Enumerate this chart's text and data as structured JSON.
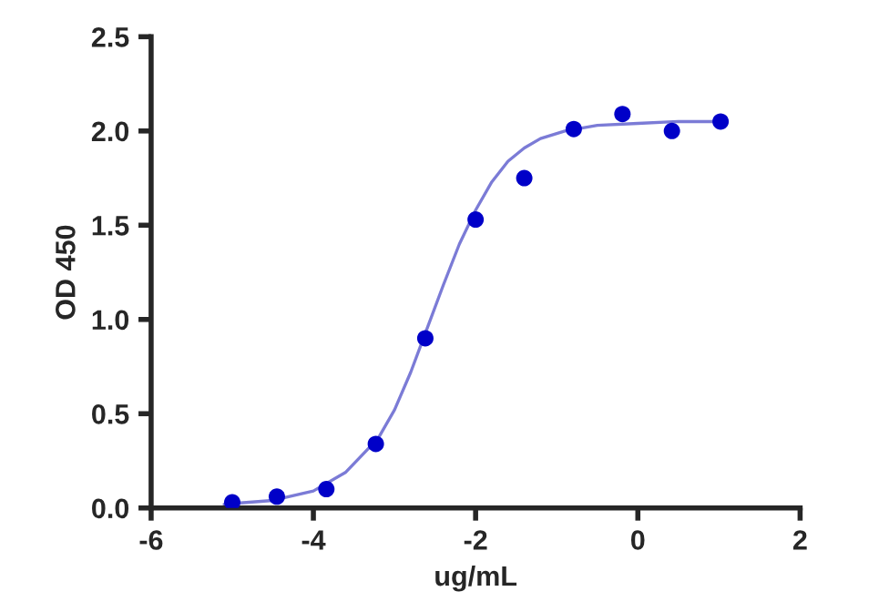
{
  "chart_data": {
    "type": "scatter",
    "xlabel": "ug/mL",
    "ylabel": "OD 450",
    "xlim": [
      -6,
      2
    ],
    "xticks": [
      -6,
      -4,
      -2,
      0,
      2
    ],
    "ylim": [
      0,
      2.5
    ],
    "yticks": [
      {
        "value": 0,
        "label": "0.0"
      },
      {
        "value": 0.5,
        "label": "0.5"
      },
      {
        "value": 1.0,
        "label": "1.0"
      },
      {
        "value": 1.5,
        "label": "1.5"
      },
      {
        "value": 2.0,
        "label": "2.0"
      },
      {
        "value": 2.5,
        "label": "2.5"
      }
    ],
    "grid": false,
    "legend": false,
    "series": [
      {
        "type": "line",
        "color": "#7b7bd6",
        "marker": "none",
        "line_style": "solid",
        "x": [
          -5.1,
          -4.5,
          -4.0,
          -3.6,
          -3.2,
          -3.0,
          -2.8,
          -2.6,
          -2.4,
          -2.2,
          -2.0,
          -1.8,
          -1.6,
          -1.4,
          -1.2,
          -0.9,
          -0.5,
          0,
          0.5,
          1.0
        ],
        "values": [
          0.02,
          0.04,
          0.09,
          0.19,
          0.37,
          0.52,
          0.72,
          0.95,
          1.18,
          1.4,
          1.58,
          1.73,
          1.84,
          1.91,
          1.96,
          2.0,
          2.03,
          2.04,
          2.05,
          2.05
        ]
      },
      {
        "color": "#0000c8",
        "marker": "circle",
        "x": [
          -5.0,
          -4.45,
          -3.84,
          -3.23,
          -2.62,
          -2.0,
          -1.4,
          -0.79,
          -0.19,
          0.42,
          1.02
        ],
        "values": [
          0.03,
          0.06,
          0.1,
          0.34,
          0.9,
          1.53,
          1.75,
          2.01,
          2.09,
          2.0,
          2.05
        ]
      }
    ]
  }
}
